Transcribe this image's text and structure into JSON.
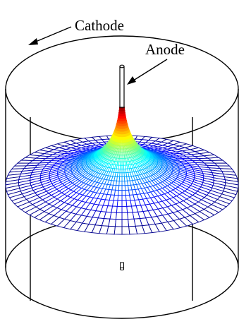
{
  "labels": {
    "cathode": "Cathode",
    "anode": "Anode"
  },
  "colors": {
    "outline": "#000000",
    "colormap": [
      "#00007f",
      "#0000ff",
      "#007fff",
      "#00ffff",
      "#7fff7f",
      "#ffff00",
      "#ff7f00",
      "#ff0000",
      "#7f0000"
    ]
  },
  "surface": {
    "colormap_name": "jet",
    "rings": 34,
    "spokes": 96
  }
}
